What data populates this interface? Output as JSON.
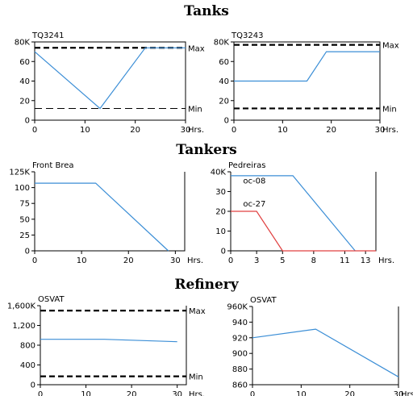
{
  "sections": {
    "tanks": "Tanks",
    "tankers": "Tankers",
    "refinery": "Refinery"
  },
  "chart_data": [
    {
      "id": "tq3241",
      "type": "line",
      "title": "TQ3241",
      "xlim": [
        0,
        30
      ],
      "ylim": [
        0,
        80
      ],
      "xticks": [
        0,
        10,
        20,
        30
      ],
      "xtick_labels": [
        "0",
        "10",
        "20",
        "30"
      ],
      "x_unit": "Hrs.",
      "yticks": [
        0,
        20,
        40,
        60,
        80
      ],
      "ytick_labels": [
        "0",
        "20",
        "40",
        "60",
        "80K"
      ],
      "series": [
        {
          "color": "#3b8ed6",
          "x": [
            0,
            13,
            22,
            30
          ],
          "y": [
            70,
            12,
            74,
            74
          ]
        }
      ],
      "hlines": [
        {
          "y": 74,
          "label": "Max",
          "style": "bold-dash"
        },
        {
          "y": 12,
          "label": "Min",
          "style": "thin-dash"
        }
      ],
      "frame_top": true
    },
    {
      "id": "tq3243",
      "type": "line",
      "title": "TQ3243",
      "xlim": [
        0,
        30
      ],
      "ylim": [
        0,
        80
      ],
      "xticks": [
        0,
        10,
        20,
        30
      ],
      "xtick_labels": [
        "0",
        "10",
        "20",
        "30"
      ],
      "x_unit": "Hrs.",
      "yticks": [
        0,
        20,
        40,
        60,
        80
      ],
      "ytick_labels": [
        "0",
        "20",
        "40",
        "60",
        "80K"
      ],
      "series": [
        {
          "color": "#3b8ed6",
          "x": [
            0,
            15,
            19,
            30
          ],
          "y": [
            40,
            40,
            70,
            70
          ]
        }
      ],
      "hlines": [
        {
          "y": 77,
          "label": "Max",
          "style": "bold-dash"
        },
        {
          "y": 12,
          "label": "Min",
          "style": "bold-dash"
        }
      ],
      "frame_top": true
    },
    {
      "id": "front-brea",
      "type": "line",
      "title": "Front Brea",
      "xlim": [
        0,
        32
      ],
      "ylim": [
        0,
        125
      ],
      "xticks": [
        0,
        10,
        20,
        30
      ],
      "xtick_labels": [
        "0",
        "10",
        "20",
        "30"
      ],
      "x_unit": "Hrs.",
      "yticks": [
        0,
        25,
        50,
        75,
        100,
        125
      ],
      "ytick_labels": [
        "0",
        "25",
        "50",
        "75",
        "100",
        "125K"
      ],
      "series": [
        {
          "color": "#3b8ed6",
          "x": [
            0,
            13,
            28.5
          ],
          "y": [
            107,
            107,
            0
          ]
        }
      ],
      "hlines": [],
      "frame_top": false
    },
    {
      "id": "pedreiras",
      "type": "line",
      "title": "Pedreiras",
      "xlim": [
        0,
        14
      ],
      "ylim": [
        0,
        40
      ],
      "xticks": [
        0,
        2.5,
        5,
        8,
        11,
        13
      ],
      "xtick_labels": [
        "0",
        "3",
        "5",
        "8",
        "11",
        "13"
      ],
      "x_unit": "Hrs.",
      "yticks": [
        0,
        10,
        20,
        30,
        40
      ],
      "ytick_labels": [
        "0",
        "10",
        "20",
        "30",
        "40K"
      ],
      "series": [
        {
          "name": "oc-08",
          "color": "#3b8ed6",
          "x": [
            0,
            6,
            12
          ],
          "y": [
            38,
            38,
            0
          ],
          "label_at": [
            1.2,
            34
          ]
        },
        {
          "name": "oc-27",
          "color": "#e04040",
          "x": [
            0,
            2.5,
            5,
            14
          ],
          "y": [
            20,
            20,
            0,
            0
          ],
          "label_at": [
            1.2,
            22.5
          ]
        }
      ],
      "hlines": [],
      "frame_top": false
    },
    {
      "id": "osvat-1",
      "type": "line",
      "title": "OSVAT",
      "xlim": [
        0,
        32
      ],
      "ylim": [
        0,
        1600
      ],
      "xticks": [
        0,
        10,
        20,
        30
      ],
      "xtick_labels": [
        "0",
        "10",
        "20",
        "30"
      ],
      "x_unit": "Hrs.",
      "yticks": [
        0,
        400,
        800,
        1200,
        1600
      ],
      "ytick_labels": [
        "0",
        "400",
        "800",
        "1,200",
        "1,600K"
      ],
      "series": [
        {
          "color": "#3b8ed6",
          "x": [
            0,
            14,
            30
          ],
          "y": [
            920,
            920,
            870
          ]
        }
      ],
      "hlines": [
        {
          "y": 1500,
          "label": "Max",
          "style": "bold-dash"
        },
        {
          "y": 170,
          "label": "Min",
          "style": "bold-dash"
        }
      ],
      "frame_top": false
    },
    {
      "id": "osvat-2",
      "type": "line",
      "title": "OSVAT",
      "xlim": [
        0,
        30
      ],
      "ylim": [
        860,
        960
      ],
      "xticks": [
        0,
        10,
        20,
        30
      ],
      "xtick_labels": [
        "0",
        "10",
        "20",
        "30"
      ],
      "x_unit": "Hrs.",
      "yticks": [
        860,
        880,
        900,
        920,
        940,
        960
      ],
      "ytick_labels": [
        "860",
        "880",
        "900",
        "920",
        "940",
        "960K"
      ],
      "series": [
        {
          "color": "#3b8ed6",
          "x": [
            0,
            13,
            30
          ],
          "y": [
            920,
            931,
            870
          ]
        }
      ],
      "hlines": [],
      "frame_top": false
    }
  ]
}
